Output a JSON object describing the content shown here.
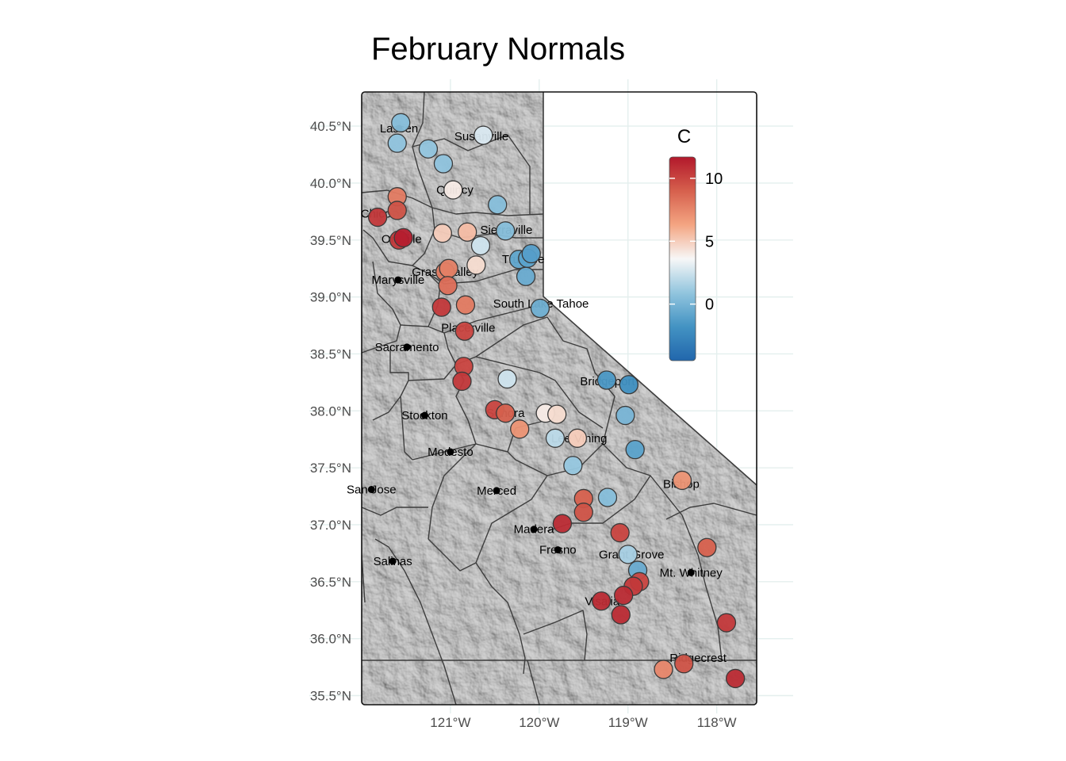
{
  "title": "February Normals",
  "chart_data": {
    "type": "scatter",
    "title": "February Normals",
    "xlabel": "",
    "ylabel": "",
    "xlim": [
      -122.0,
      -117.55
    ],
    "ylim": [
      35.42,
      40.8
    ],
    "x_ticks": [
      -121,
      -120,
      -119,
      -118
    ],
    "x_tick_labels": [
      "121°W",
      "120°W",
      "119°W",
      "118°W"
    ],
    "y_ticks": [
      35.5,
      36.0,
      36.5,
      37.0,
      37.5,
      38.0,
      38.5,
      39.0,
      39.5,
      40.0,
      40.5
    ],
    "y_tick_labels": [
      "35.5°N",
      "36.0°N",
      "36.5°N",
      "37.0°N",
      "37.5°N",
      "38.0°N",
      "38.5°N",
      "39.0°N",
      "39.5°N",
      "40.0°N",
      "40.5°N"
    ],
    "grid": true,
    "legend": {
      "title": "C",
      "placement": "top-right",
      "range": [
        -4.5,
        11.7
      ],
      "ticks": [
        0,
        5,
        10
      ],
      "tick_labels": [
        "0",
        "5",
        "10"
      ],
      "colors": [
        "#2166ac",
        "#4393c3",
        "#92c5de",
        "#f7f7f7",
        "#f4a582",
        "#d6604d",
        "#b2182b"
      ]
    },
    "cities": [
      {
        "name": "Lassen",
        "lon": -121.58,
        "lat": 40.48,
        "dot": true
      },
      {
        "name": "Susanville",
        "lon": -120.65,
        "lat": 40.41,
        "dot": false
      },
      {
        "name": "Quincy",
        "lon": -120.95,
        "lat": 39.94,
        "dot": false
      },
      {
        "name": "Chico",
        "lon": -121.84,
        "lat": 39.73,
        "dot": false
      },
      {
        "name": "Oroville",
        "lon": -121.55,
        "lat": 39.51,
        "dot": false
      },
      {
        "name": "Sierraville",
        "lon": -120.37,
        "lat": 39.59,
        "dot": false
      },
      {
        "name": "Truckee",
        "lon": -120.18,
        "lat": 39.33,
        "dot": false
      },
      {
        "name": "Grass Valley",
        "lon": -121.06,
        "lat": 39.22,
        "dot": false
      },
      {
        "name": "Marysville",
        "lon": -121.59,
        "lat": 39.15,
        "dot": true
      },
      {
        "name": "South Lake Tahoe",
        "lon": -119.98,
        "lat": 38.94,
        "dot": false
      },
      {
        "name": "Placerville",
        "lon": -120.8,
        "lat": 38.73,
        "dot": false
      },
      {
        "name": "Sacramento",
        "lon": -121.49,
        "lat": 38.56,
        "dot": true
      },
      {
        "name": "Bridgeport",
        "lon": -119.23,
        "lat": 38.26,
        "dot": false
      },
      {
        "name": "Stockton",
        "lon": -121.29,
        "lat": 37.96,
        "dot": true
      },
      {
        "name": "Sonora",
        "lon": -120.38,
        "lat": 37.98,
        "dot": false
      },
      {
        "name": "Lee Vining",
        "lon": -119.55,
        "lat": 37.76,
        "dot": false
      },
      {
        "name": "Modesto",
        "lon": -121.0,
        "lat": 37.64,
        "dot": true
      },
      {
        "name": "Bishop",
        "lon": -118.4,
        "lat": 37.36,
        "dot": false
      },
      {
        "name": "San Jose",
        "lon": -121.89,
        "lat": 37.31,
        "dot": true
      },
      {
        "name": "Merced",
        "lon": -120.48,
        "lat": 37.3,
        "dot": true
      },
      {
        "name": "Madera",
        "lon": -120.06,
        "lat": 36.96,
        "dot": true
      },
      {
        "name": "Fresno",
        "lon": -119.79,
        "lat": 36.78,
        "dot": true
      },
      {
        "name": "Grant Grove",
        "lon": -118.96,
        "lat": 36.74,
        "dot": false
      },
      {
        "name": "Salinas",
        "lon": -121.65,
        "lat": 36.68,
        "dot": true
      },
      {
        "name": "Mt. Whitney",
        "lon": -118.29,
        "lat": 36.58,
        "dot": true
      },
      {
        "name": "Visalia",
        "lon": -119.29,
        "lat": 36.33,
        "dot": false
      },
      {
        "name": "Ridgecrest",
        "lon": -118.21,
        "lat": 35.83,
        "dot": false
      }
    ],
    "stations": [
      {
        "lon": -121.56,
        "lat": 40.53,
        "value": 0.5
      },
      {
        "lon": -121.6,
        "lat": 40.35,
        "value": 0.8
      },
      {
        "lon": -121.25,
        "lat": 40.3,
        "value": 0.9
      },
      {
        "lon": -121.08,
        "lat": 40.17,
        "value": 0.8
      },
      {
        "lon": -120.63,
        "lat": 40.42,
        "value": 2.8
      },
      {
        "lon": -121.6,
        "lat": 39.88,
        "value": 8.0
      },
      {
        "lon": -121.6,
        "lat": 39.76,
        "value": 9.5
      },
      {
        "lon": -121.82,
        "lat": 39.7,
        "value": 10.5
      },
      {
        "lon": -121.58,
        "lat": 39.5,
        "value": 10.5
      },
      {
        "lon": -121.53,
        "lat": 39.52,
        "value": 11.5
      },
      {
        "lon": -120.97,
        "lat": 39.94,
        "value": 4.0
      },
      {
        "lon": -120.47,
        "lat": 39.81,
        "value": 0.5
      },
      {
        "lon": -121.09,
        "lat": 39.56,
        "value": 5.0
      },
      {
        "lon": -120.81,
        "lat": 39.57,
        "value": 5.5
      },
      {
        "lon": -120.66,
        "lat": 39.45,
        "value": 2.5
      },
      {
        "lon": -120.38,
        "lat": 39.58,
        "value": 0.5
      },
      {
        "lon": -120.23,
        "lat": 39.33,
        "value": -0.8
      },
      {
        "lon": -120.13,
        "lat": 39.34,
        "value": -1.0
      },
      {
        "lon": -120.09,
        "lat": 39.38,
        "value": -1.2
      },
      {
        "lon": -120.15,
        "lat": 39.18,
        "value": -0.5
      },
      {
        "lon": -120.71,
        "lat": 39.28,
        "value": 4.5
      },
      {
        "lon": -121.06,
        "lat": 39.22,
        "value": 8.0
      },
      {
        "lon": -121.02,
        "lat": 39.25,
        "value": 7.8
      },
      {
        "lon": -121.03,
        "lat": 39.1,
        "value": 8.5
      },
      {
        "lon": -121.1,
        "lat": 38.91,
        "value": 10.5
      },
      {
        "lon": -120.83,
        "lat": 38.93,
        "value": 8.0
      },
      {
        "lon": -120.84,
        "lat": 38.7,
        "value": 10.0
      },
      {
        "lon": -119.99,
        "lat": 38.9,
        "value": -0.3
      },
      {
        "lon": -120.85,
        "lat": 38.39,
        "value": 10.0
      },
      {
        "lon": -120.87,
        "lat": 38.26,
        "value": 10.5
      },
      {
        "lon": -120.36,
        "lat": 38.28,
        "value": 2.5
      },
      {
        "lon": -120.5,
        "lat": 38.01,
        "value": 10.0
      },
      {
        "lon": -120.38,
        "lat": 37.98,
        "value": 9.0
      },
      {
        "lon": -120.22,
        "lat": 37.84,
        "value": 7.0
      },
      {
        "lon": -119.93,
        "lat": 37.98,
        "value": 4.0
      },
      {
        "lon": -119.8,
        "lat": 37.97,
        "value": 4.5
      },
      {
        "lon": -119.82,
        "lat": 37.76,
        "value": 2.0
      },
      {
        "lon": -119.57,
        "lat": 37.76,
        "value": 5.0
      },
      {
        "lon": -119.62,
        "lat": 37.52,
        "value": 1.0
      },
      {
        "lon": -119.24,
        "lat": 38.27,
        "value": -1.5
      },
      {
        "lon": -118.99,
        "lat": 38.23,
        "value": -2.0
      },
      {
        "lon": -119.03,
        "lat": 37.96,
        "value": 0.0
      },
      {
        "lon": -118.92,
        "lat": 37.66,
        "value": -1.0
      },
      {
        "lon": -118.39,
        "lat": 37.39,
        "value": 7.0
      },
      {
        "lon": -119.5,
        "lat": 37.23,
        "value": 9.0
      },
      {
        "lon": -119.5,
        "lat": 37.11,
        "value": 9.5
      },
      {
        "lon": -119.74,
        "lat": 37.01,
        "value": 11.0
      },
      {
        "lon": -119.23,
        "lat": 37.24,
        "value": 0.5
      },
      {
        "lon": -119.09,
        "lat": 36.93,
        "value": 10.0
      },
      {
        "lon": -119.0,
        "lat": 36.74,
        "value": 1.5
      },
      {
        "lon": -118.89,
        "lat": 36.6,
        "value": -0.5
      },
      {
        "lon": -118.87,
        "lat": 36.5,
        "value": 10.0
      },
      {
        "lon": -118.94,
        "lat": 36.46,
        "value": 10.5
      },
      {
        "lon": -119.05,
        "lat": 36.38,
        "value": 11.0
      },
      {
        "lon": -119.3,
        "lat": 36.33,
        "value": 11.0
      },
      {
        "lon": -119.08,
        "lat": 36.21,
        "value": 11.0
      },
      {
        "lon": -118.11,
        "lat": 36.8,
        "value": 9.0
      },
      {
        "lon": -117.89,
        "lat": 36.14,
        "value": 10.5
      },
      {
        "lon": -118.6,
        "lat": 35.73,
        "value": 7.5
      },
      {
        "lon": -118.37,
        "lat": 35.78,
        "value": 9.5
      },
      {
        "lon": -117.79,
        "lat": 35.65,
        "value": 11.0
      }
    ]
  }
}
